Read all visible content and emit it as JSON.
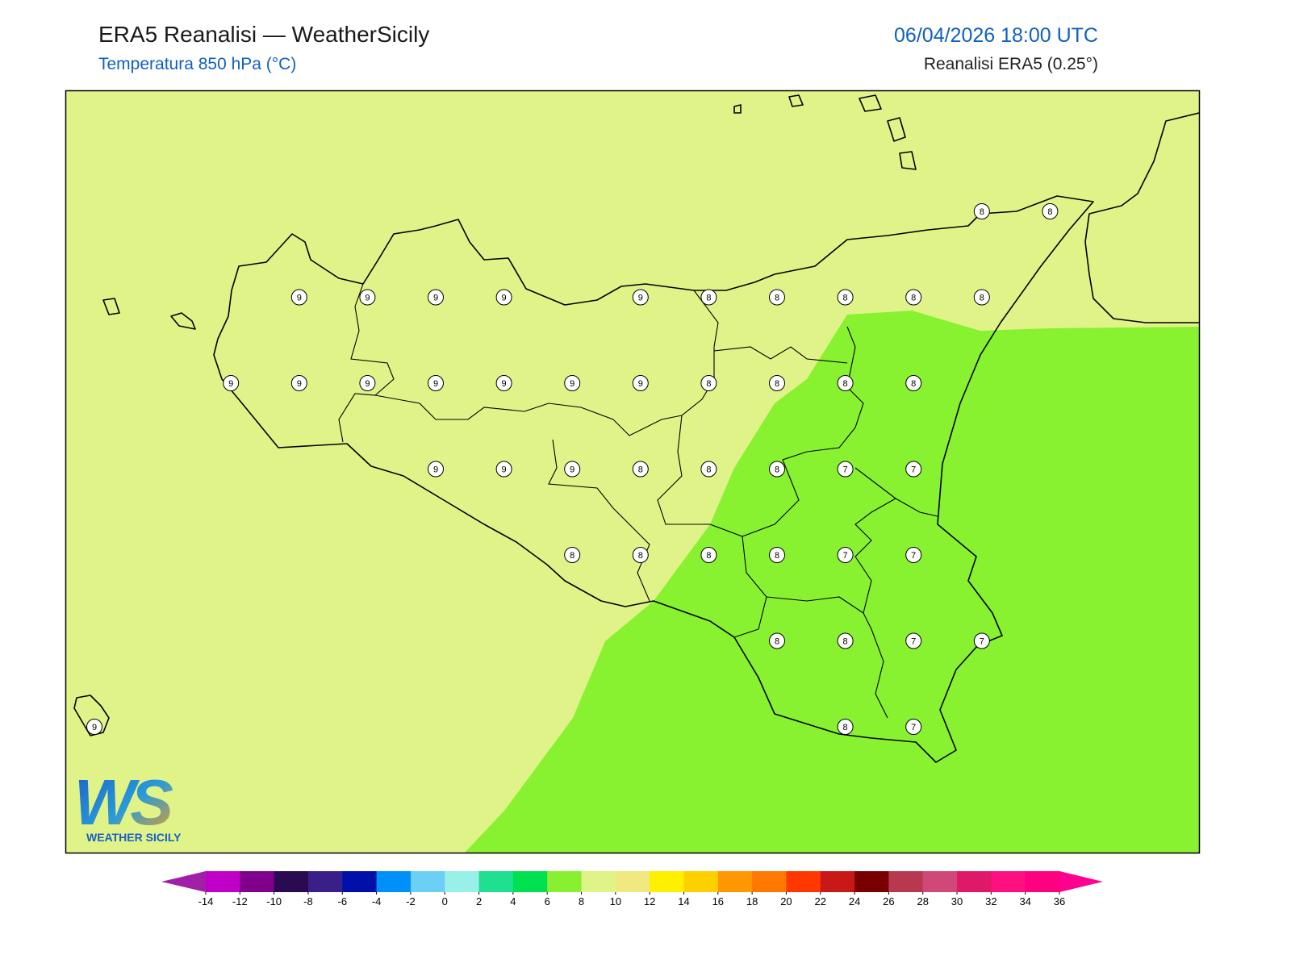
{
  "header": {
    "title": "ERA5 Reanalisi — WeatherSicily",
    "subtitle": "Temperatura 850 hPa (°C)",
    "datetime": "06/04/2026 18:00 UTC",
    "source": "Reanalisi ERA5 (0.25°)"
  },
  "map": {
    "grid": [
      [
        null,
        null,
        null,
        null,
        null,
        null,
        null,
        null,
        null,
        null,
        null,
        null,
        null,
        8,
        8
      ],
      [
        null,
        null,
        null,
        9,
        9,
        9,
        9,
        null,
        9,
        8,
        8,
        8,
        8,
        8,
        null
      ],
      [
        null,
        null,
        9,
        9,
        9,
        9,
        9,
        9,
        9,
        8,
        8,
        8,
        8,
        null,
        null
      ],
      [
        null,
        null,
        null,
        null,
        null,
        9,
        9,
        9,
        8,
        8,
        8,
        7,
        7,
        null,
        null
      ],
      [
        null,
        null,
        null,
        null,
        null,
        null,
        null,
        8,
        8,
        8,
        8,
        7,
        7,
        null,
        null
      ],
      [
        null,
        null,
        null,
        null,
        null,
        null,
        null,
        null,
        null,
        null,
        8,
        8,
        7,
        7,
        null
      ],
      [
        9,
        null,
        null,
        null,
        null,
        null,
        null,
        null,
        null,
        null,
        null,
        8,
        7,
        null,
        null
      ]
    ]
  },
  "colorbar": {
    "ticks": [
      -14,
      -12,
      -10,
      -8,
      -6,
      -4,
      -2,
      0,
      2,
      4,
      6,
      8,
      10,
      12,
      14,
      16,
      18,
      20,
      22,
      24,
      26,
      28,
      30,
      32,
      34,
      36
    ],
    "colors": [
      "#c000c8",
      "#80008c",
      "#2a0a50",
      "#3a1f88",
      "#0010a8",
      "#0090f8",
      "#6ccff6",
      "#98f0e8",
      "#20e090",
      "#00e050",
      "#88f030",
      "#e0f388",
      "#f0e880",
      "#fff000",
      "#ffd000",
      "#ff9800",
      "#ff7800",
      "#ff3800",
      "#c81818",
      "#780000",
      "#b83850",
      "#d04878",
      "#e01868",
      "#ff1080",
      "#ff0080"
    ],
    "under_color": "#a020a8",
    "over_color": "#ff0090"
  },
  "logo": {
    "mark": "WS",
    "text": "WEATHER SICILY"
  }
}
